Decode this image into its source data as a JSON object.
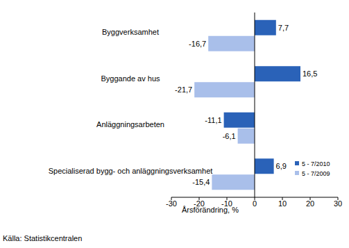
{
  "chart_data": {
    "type": "bar",
    "orientation": "horizontal",
    "categories": [
      "Byggverksamhet",
      "Byggande av hus",
      "Anläggningsarbeten",
      "Specialiserad bygg- och anläggningsverksamhet"
    ],
    "series": [
      {
        "name": "5 - 7/2010",
        "color": "#2a62b8",
        "values": [
          7.7,
          16.5,
          -11.1,
          6.9
        ],
        "value_labels": [
          "7,7",
          "16,5",
          "-11,1",
          "6,9"
        ]
      },
      {
        "name": "5 - 7/2009",
        "color": "#a9bfea",
        "values": [
          -16.7,
          -21.7,
          -6.1,
          -15.4
        ],
        "value_labels": [
          "-16,7",
          "-21,7",
          "-6,1",
          "-15,4"
        ]
      }
    ],
    "x_label": "Årsförändring, %",
    "source": "Källa: Statistikcentralen",
    "xlim": [
      -30,
      30
    ],
    "xticks": [
      -30,
      -20,
      -10,
      0,
      10,
      20,
      30
    ],
    "grid": false,
    "legend": "lower right",
    "data_labels": true
  }
}
